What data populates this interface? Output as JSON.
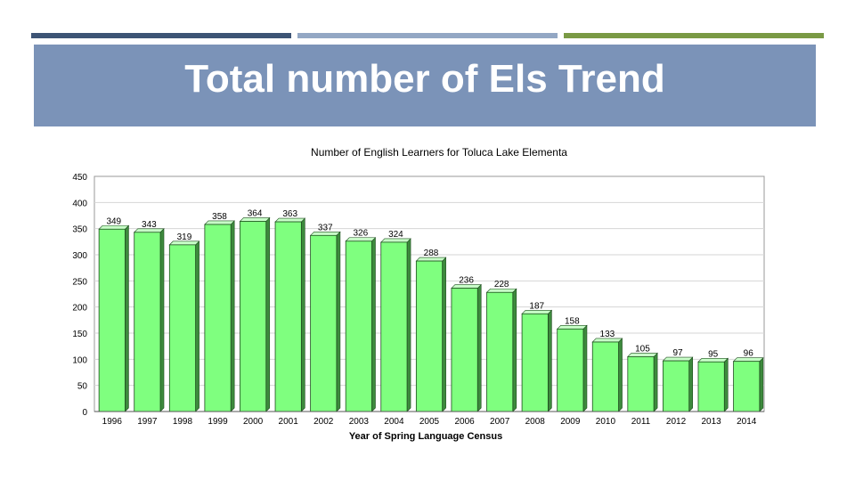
{
  "colors": {
    "bar_dark": "#3d5475",
    "bar_mid": "#93a7c4",
    "bar_green": "#7a9a45",
    "title_band": "#7b93b8",
    "column_fill": "#7fff7f",
    "column_side": "#3d8a3d",
    "column_top": "#c8ffc8"
  },
  "slide": {
    "title": "Total number of Els Trend"
  },
  "chart_data": {
    "type": "bar",
    "title": "Number of English Learners for Toluca Lake Elementa",
    "xlabel": "Year of Spring Language Census",
    "ylabel": "",
    "ylim": [
      0,
      450
    ],
    "yticks": [
      "0",
      "50",
      "100",
      "150",
      "200",
      "250",
      "300",
      "350",
      "400",
      "450"
    ],
    "grid": true,
    "categories": [
      "1996",
      "1997",
      "1998",
      "1999",
      "2000",
      "2001",
      "2002",
      "2003",
      "2004",
      "2005",
      "2006",
      "2007",
      "2008",
      "2009",
      "2010",
      "2011",
      "2012",
      "2013",
      "2014"
    ],
    "values": [
      349,
      343,
      319,
      358,
      364,
      363,
      337,
      326,
      324,
      288,
      236,
      228,
      187,
      158,
      133,
      105,
      97,
      95,
      96
    ],
    "value_labels": [
      "349",
      "343",
      "319",
      "358",
      "364",
      "363",
      "337",
      "326",
      "324",
      "288",
      "236",
      "228",
      "187",
      "158",
      "133",
      "105",
      "97",
      "95",
      "96"
    ]
  }
}
